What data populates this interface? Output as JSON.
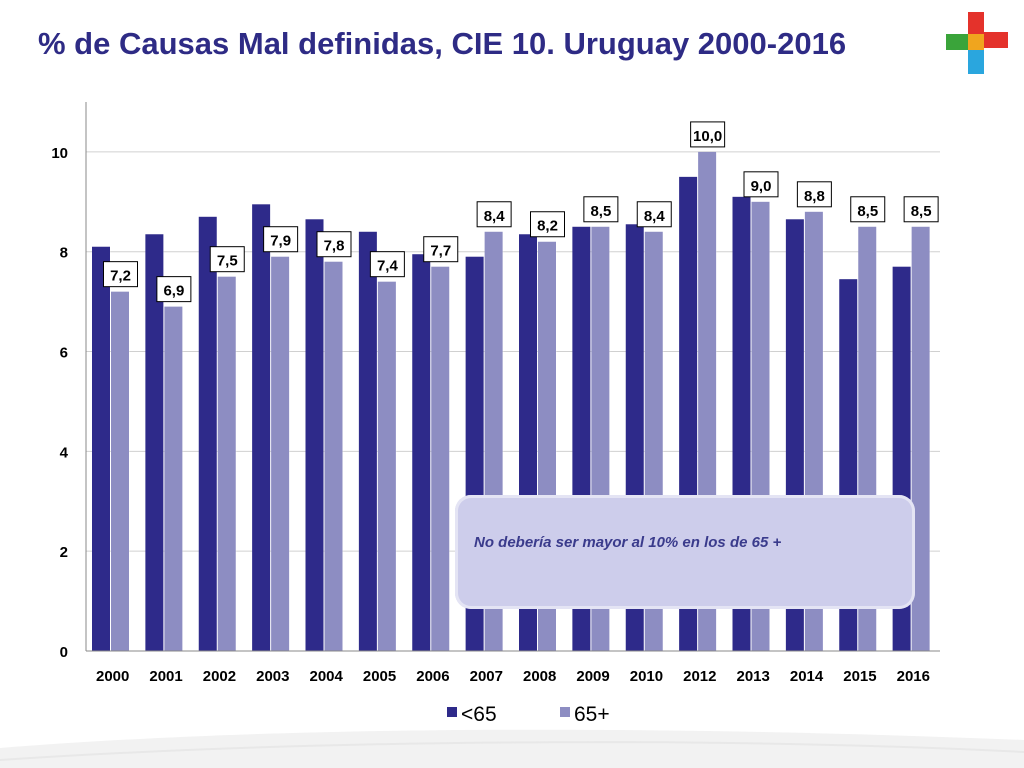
{
  "slide": {
    "title": "% de Causas Mal definidas, CIE 10. Uruguay 2000-2016",
    "logo_icon": "medical-cross-logo-icon",
    "note": "No debería ser mayor al 10% en los de 65 +"
  },
  "colors": {
    "series_under65": "#2e2a8a",
    "series_65plus": "#8d8dc2",
    "title": "#2e2b85",
    "grid": "#d0d0d0",
    "note_bg": "#cdcdeb"
  },
  "chart_data": {
    "type": "bar",
    "title": "",
    "xlabel": "",
    "ylabel": "",
    "ylim": [
      0,
      11
    ],
    "yticks": [
      0,
      2,
      4,
      6,
      8,
      10
    ],
    "ytick_labels": [
      "0",
      "2",
      "4",
      "6",
      "8",
      "10"
    ],
    "grid": true,
    "legend_position": "bottom",
    "categories": [
      "2000",
      "2001",
      "2002",
      "2003",
      "2004",
      "2005",
      "2006",
      "2007",
      "2008",
      "2009",
      "2010",
      "2012",
      "2013",
      "2014",
      "2015",
      "2016"
    ],
    "series": [
      {
        "name": "<65",
        "values": [
          8.1,
          8.35,
          8.7,
          8.95,
          8.65,
          8.4,
          7.95,
          7.9,
          8.35,
          8.5,
          8.55,
          9.5,
          9.1,
          8.65,
          7.45,
          7.7
        ]
      },
      {
        "name": "65+",
        "values": [
          7.2,
          6.9,
          7.5,
          7.9,
          7.8,
          7.4,
          7.7,
          8.4,
          8.2,
          8.5,
          8.4,
          10.0,
          9.0,
          8.8,
          8.5,
          8.5
        ],
        "data_labels": [
          "7,2",
          "6,9",
          "7,5",
          "7,9",
          "7,8",
          "7,4",
          "7,7",
          "8,4",
          "8,2",
          "8,5",
          "8,4",
          "10,0",
          "9,0",
          "8,8",
          "8,5",
          "8,5"
        ]
      }
    ]
  }
}
